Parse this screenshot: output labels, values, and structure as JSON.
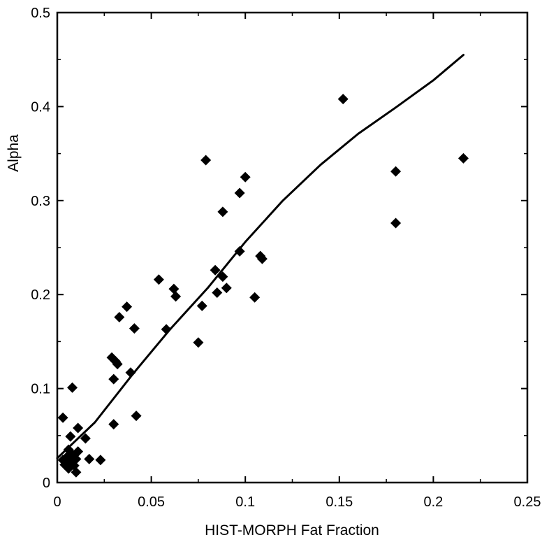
{
  "chart_data": {
    "type": "scatter",
    "title": "",
    "xlabel": "HIST-MORPH Fat Fraction",
    "ylabel": "Alpha",
    "xlim": [
      0,
      0.25
    ],
    "ylim": [
      0,
      0.5
    ],
    "x_ticks": [
      0,
      0.05,
      0.1,
      0.15,
      0.2,
      0.25
    ],
    "x_tick_labels": [
      "0",
      "0.05",
      "0.1",
      "0.15",
      "0.2",
      "0.25"
    ],
    "y_ticks": [
      0,
      0.1,
      0.2,
      0.3,
      0.4,
      0.5
    ],
    "y_tick_labels": [
      "0",
      "0.1",
      "0.2",
      "0.3",
      "0.4",
      "0.5"
    ],
    "grid": false,
    "legend": "none",
    "marker_color": "#000000",
    "marker_shape": "diamond",
    "series": [
      {
        "points": [
          [
            0.003,
            0.069
          ],
          [
            0.008,
            0.101
          ],
          [
            0.007,
            0.049
          ],
          [
            0.011,
            0.058
          ],
          [
            0.015,
            0.047
          ],
          [
            0.003,
            0.024
          ],
          [
            0.004,
            0.019
          ],
          [
            0.005,
            0.027
          ],
          [
            0.006,
            0.035
          ],
          [
            0.006,
            0.015
          ],
          [
            0.007,
            0.022
          ],
          [
            0.008,
            0.03
          ],
          [
            0.009,
            0.018
          ],
          [
            0.009,
            0.026
          ],
          [
            0.01,
            0.011
          ],
          [
            0.01,
            0.025
          ],
          [
            0.011,
            0.033
          ],
          [
            0.017,
            0.025
          ],
          [
            0.023,
            0.024
          ],
          [
            0.029,
            0.133
          ],
          [
            0.03,
            0.11
          ],
          [
            0.031,
            0.129
          ],
          [
            0.032,
            0.126
          ],
          [
            0.03,
            0.062
          ],
          [
            0.033,
            0.176
          ],
          [
            0.037,
            0.187
          ],
          [
            0.039,
            0.117
          ],
          [
            0.041,
            0.164
          ],
          [
            0.042,
            0.071
          ],
          [
            0.054,
            0.216
          ],
          [
            0.058,
            0.163
          ],
          [
            0.062,
            0.206
          ],
          [
            0.063,
            0.198
          ],
          [
            0.075,
            0.149
          ],
          [
            0.077,
            0.188
          ],
          [
            0.079,
            0.343
          ],
          [
            0.084,
            0.226
          ],
          [
            0.085,
            0.202
          ],
          [
            0.088,
            0.219
          ],
          [
            0.088,
            0.288
          ],
          [
            0.09,
            0.207
          ],
          [
            0.097,
            0.246
          ],
          [
            0.097,
            0.308
          ],
          [
            0.1,
            0.325
          ],
          [
            0.105,
            0.197
          ],
          [
            0.108,
            0.241
          ],
          [
            0.109,
            0.238
          ],
          [
            0.152,
            0.408
          ],
          [
            0.18,
            0.331
          ],
          [
            0.18,
            0.276
          ],
          [
            0.216,
            0.345
          ]
        ]
      }
    ],
    "fit_curve": {
      "points": [
        [
          0.0,
          0.026
        ],
        [
          0.02,
          0.064
        ],
        [
          0.04,
          0.115
        ],
        [
          0.06,
          0.163
        ],
        [
          0.08,
          0.207
        ],
        [
          0.1,
          0.256
        ],
        [
          0.12,
          0.3
        ],
        [
          0.14,
          0.338
        ],
        [
          0.16,
          0.371
        ],
        [
          0.18,
          0.399
        ],
        [
          0.2,
          0.428
        ],
        [
          0.216,
          0.455
        ]
      ]
    }
  }
}
